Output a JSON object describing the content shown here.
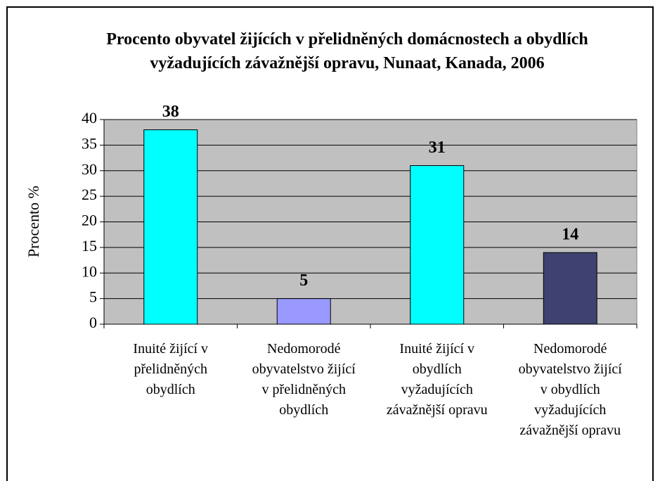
{
  "chart_data": {
    "type": "bar",
    "title": "Procento obyvatel žijících v přelidněných domácnostech a obydlích vyžadujících závažnější opravu, Nunaat, Kanada, 2006",
    "y_label": "Procento %",
    "categories": [
      "Inuité žijící v přelidněných obydlích",
      "Nedomorodé obyvatelstvo žijící v přelidněných obydlích",
      "Inuité žijící v obydlích vyžadujících závažnější opravu",
      "Nedomorodé obyvatelstvo žijící v obydlích vyžadujících závažnější opravu"
    ],
    "values": [
      38,
      5,
      31,
      14
    ],
    "colors": [
      "#00ffff",
      "#9999ff",
      "#00ffff",
      "#3f4270"
    ],
    "ylim": [
      0,
      40
    ],
    "yticks": [
      0,
      5,
      10,
      15,
      20,
      25,
      30,
      35,
      40
    ],
    "grid": true
  }
}
